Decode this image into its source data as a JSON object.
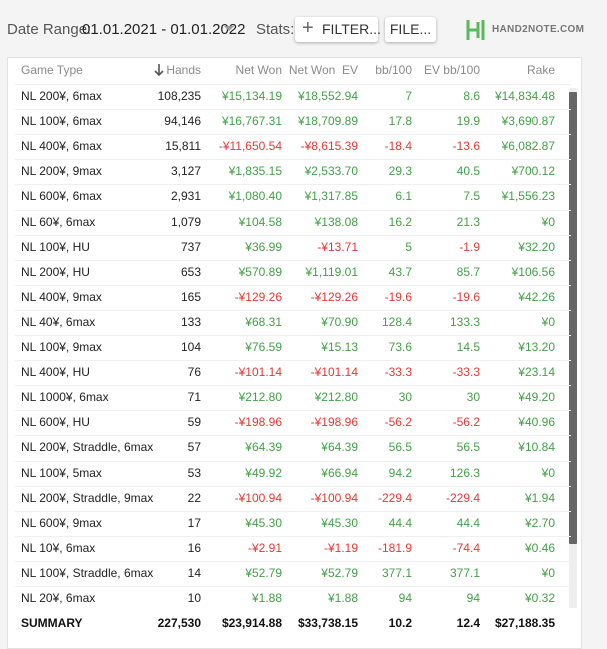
{
  "header": {
    "date_range_label": "Date Range:",
    "date_range": "01.01.2021 - 01.01.2022",
    "stats_label": "Stats:",
    "filter_button": "FILTER...",
    "file_button": "FILE...",
    "logo": "HAND2NOTE.COM"
  },
  "table": {
    "columns": [
      "Game Type",
      "Hands",
      "Net Won",
      "Net Won  EV",
      "bb/100",
      "EV bb/100",
      "Rake"
    ],
    "rows": [
      [
        "NL 200¥, 6max",
        "108,235",
        "¥15,134.19",
        "¥18,552.94",
        "7",
        "8.6",
        "¥14,834.48"
      ],
      [
        "NL 100¥, 6max",
        "94,146",
        "¥16,767.31",
        "¥18,709.89",
        "17.8",
        "19.9",
        "¥3,690.87"
      ],
      [
        "NL 400¥, 6max",
        "15,811",
        "-¥11,650.54",
        "-¥8,615.39",
        "-18.4",
        "-13.6",
        "¥6,082.87"
      ],
      [
        "NL 200¥, 9max",
        "3,127",
        "¥1,835.15",
        "¥2,533.70",
        "29.3",
        "40.5",
        "¥700.12"
      ],
      [
        "NL 600¥, 6max",
        "2,931",
        "¥1,080.40",
        "¥1,317.85",
        "6.1",
        "7.5",
        "¥1,556.23"
      ],
      [
        "NL 60¥, 6max",
        "1,079",
        "¥104.58",
        "¥138.08",
        "16.2",
        "21.3",
        "¥0"
      ],
      [
        "NL 100¥, HU",
        "737",
        "¥36.99",
        "-¥13.71",
        "5",
        "-1.9",
        "¥32.20"
      ],
      [
        "NL 200¥, HU",
        "653",
        "¥570.89",
        "¥1,119.01",
        "43.7",
        "85.7",
        "¥106.56"
      ],
      [
        "NL 400¥, 9max",
        "165",
        "-¥129.26",
        "-¥129.26",
        "-19.6",
        "-19.6",
        "¥42.26"
      ],
      [
        "NL 40¥, 6max",
        "133",
        "¥68.31",
        "¥70.90",
        "128.4",
        "133.3",
        "¥0"
      ],
      [
        "NL 100¥, 9max",
        "104",
        "¥76.59",
        "¥15.13",
        "73.6",
        "14.5",
        "¥13.20"
      ],
      [
        "NL 400¥, HU",
        "76",
        "-¥101.14",
        "-¥101.14",
        "-33.3",
        "-33.3",
        "¥23.14"
      ],
      [
        "NL 1000¥, 6max",
        "71",
        "¥212.80",
        "¥212.80",
        "30",
        "30",
        "¥49.20"
      ],
      [
        "NL 600¥, HU",
        "59",
        "-¥198.96",
        "-¥198.96",
        "-56.2",
        "-56.2",
        "¥40.96"
      ],
      [
        "NL 200¥, Straddle, 6max",
        "57",
        "¥64.39",
        "¥64.39",
        "56.5",
        "56.5",
        "¥10.84"
      ],
      [
        "NL 100¥, 5max",
        "53",
        "¥49.92",
        "¥66.94",
        "94.2",
        "126.3",
        "¥0"
      ],
      [
        "NL 200¥, Straddle, 9max",
        "22",
        "-¥100.94",
        "-¥100.94",
        "-229.4",
        "-229.4",
        "¥1.94"
      ],
      [
        "NL 600¥, 9max",
        "17",
        "¥45.30",
        "¥45.30",
        "44.4",
        "44.4",
        "¥2.70"
      ],
      [
        "NL 10¥, 6max",
        "16",
        "-¥2.91",
        "-¥1.19",
        "-181.9",
        "-74.4",
        "¥0.46"
      ],
      [
        "NL 100¥, Straddle, 6max",
        "14",
        "¥52.79",
        "¥52.79",
        "377.1",
        "377.1",
        "¥0"
      ],
      [
        "NL 20¥, 6max",
        "10",
        "¥1.88",
        "¥1.88",
        "94",
        "94",
        "¥0.32"
      ]
    ],
    "summary": [
      "SUMMARY",
      "227,530",
      "$23,914.88",
      "$33,738.15",
      "10.2",
      "12.4",
      "$27,188.35"
    ]
  }
}
